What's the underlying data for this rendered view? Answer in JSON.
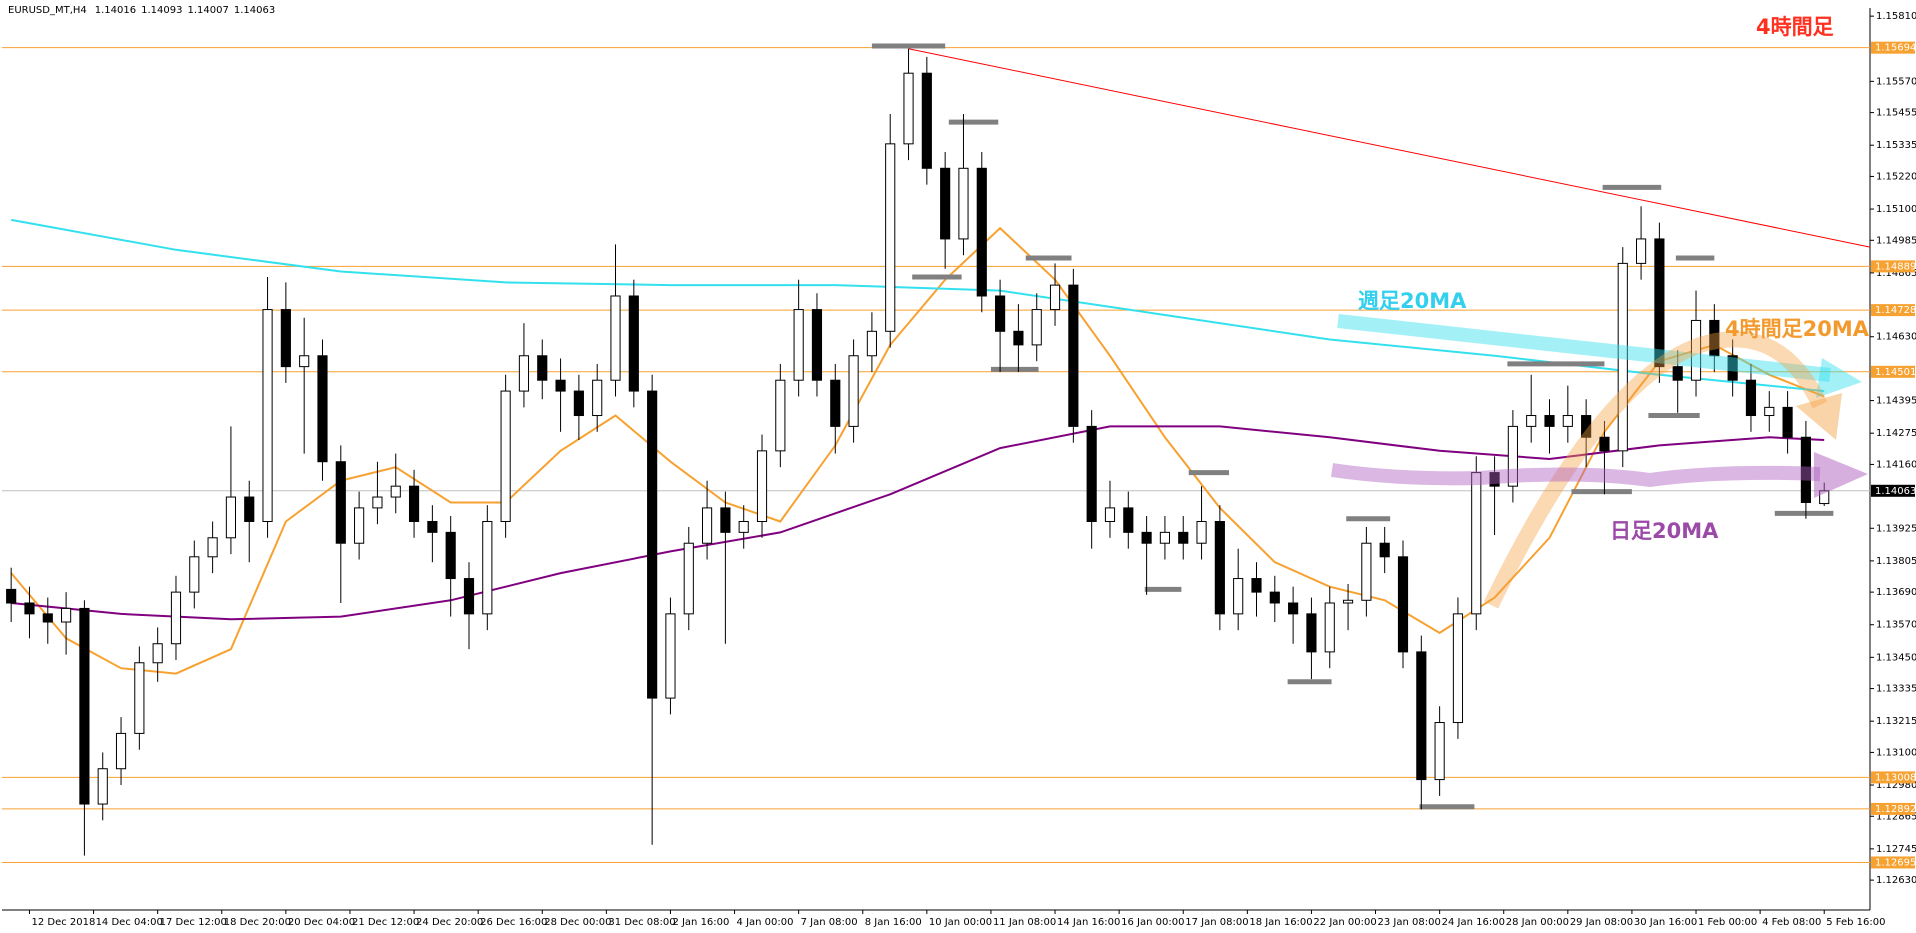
{
  "chart_data": {
    "type": "candlestick",
    "symbol": "EURUSD_MT,H4",
    "annotation": "4時間足",
    "up_color": "#ffffff",
    "down_color": "#000000",
    "xlim": [
      -0.5,
      101.5
    ],
    "ylim": [
      1.1252,
      1.1584
    ],
    "xticks": [
      {
        "value": 1,
        "label": "12 Dec 2018"
      },
      {
        "value": 4.5,
        "label": "14 Dec 04:00"
      },
      {
        "value": 8,
        "label": "17 Dec 12:00"
      },
      {
        "value": 11.5,
        "label": "18 Dec 20:00"
      },
      {
        "value": 15,
        "label": "20 Dec 04:00"
      },
      {
        "value": 18.5,
        "label": "21 Dec 12:00"
      },
      {
        "value": 22,
        "label": "24 Dec 20:00"
      },
      {
        "value": 25.5,
        "label": "26 Dec 16:00"
      },
      {
        "value": 29,
        "label": "28 Dec 00:00"
      },
      {
        "value": 32.5,
        "label": "31 Dec 08:00"
      },
      {
        "value": 36,
        "label": "2 Jan 16:00"
      },
      {
        "value": 39.5,
        "label": "4 Jan 00:00"
      },
      {
        "value": 43,
        "label": "7 Jan 08:00"
      },
      {
        "value": 46.5,
        "label": "8 Jan 16:00"
      },
      {
        "value": 50,
        "label": "10 Jan 00:00"
      },
      {
        "value": 53.5,
        "label": "11 Jan 08:00"
      },
      {
        "value": 57,
        "label": "14 Jan 16:00"
      },
      {
        "value": 60.5,
        "label": "16 Jan 00:00"
      },
      {
        "value": 64,
        "label": "17 Jan 08:00"
      },
      {
        "value": 67.5,
        "label": "18 Jan 16:00"
      },
      {
        "value": 71,
        "label": "22 Jan 00:00"
      },
      {
        "value": 74.5,
        "label": "23 Jan 08:00"
      },
      {
        "value": 78,
        "label": "24 Jan 16:00"
      },
      {
        "value": 81.5,
        "label": "28 Jan 00:00"
      },
      {
        "value": 85,
        "label": "29 Jan 08:00"
      },
      {
        "value": 88.5,
        "label": "30 Jan 16:00"
      },
      {
        "value": 92,
        "label": "1 Feb 00:00"
      },
      {
        "value": 95.5,
        "label": "4 Feb 08:00"
      },
      {
        "value": 99,
        "label": "5 Feb 16:00"
      }
    ],
    "yticks": [
      {
        "value": 1.1581,
        "label": "1.15810"
      },
      {
        "value": 1.1557,
        "label": "1.15570"
      },
      1.15455,
      1.15335,
      {
        "value": 1.1522,
        "label": "1.15220"
      },
      {
        "value": 1.151,
        "label": "1.15100"
      },
      1.14985,
      1.14865,
      {
        "value": 1.1463,
        "label": "1.14630"
      },
      1.14395,
      1.14275,
      {
        "value": 1.1416,
        "label": "1.14160"
      },
      1.13925,
      1.13805,
      {
        "value": 1.1369,
        "label": "1.13690"
      },
      {
        "value": 1.1357,
        "label": "1.13570"
      },
      {
        "value": 1.1345,
        "label": "1.13450"
      },
      1.13335,
      1.13215,
      {
        "value": 1.131,
        "label": "1.13100"
      },
      {
        "value": 1.1298,
        "label": "1.12980"
      },
      1.12865,
      1.12745,
      {
        "value": 1.1263,
        "label": "1.12630"
      }
    ],
    "levels": [
      1.15694,
      1.14889,
      1.14728,
      1.14501,
      1.13008,
      1.12892,
      1.12695
    ],
    "level_color": "#f7a130",
    "current_color": "#c0c0c0",
    "trendline": {
      "x": [
        49,
        101.5
      ],
      "values": [
        1.1569,
        1.1496
      ],
      "color": "#ff0000"
    },
    "marker_color": "#808080",
    "markers": [
      [
        47,
        51,
        1.157
      ],
      [
        51.2,
        53.9,
        1.1542
      ],
      [
        49.2,
        51.9,
        1.1485
      ],
      [
        55.4,
        57.9,
        1.1492
      ],
      [
        53.5,
        56.1,
        1.1451
      ],
      [
        64.3,
        66.5,
        1.1413
      ],
      [
        61.9,
        63.9,
        1.137
      ],
      [
        69.7,
        72.1,
        1.1336
      ],
      [
        72.9,
        75.3,
        1.1396
      ],
      [
        76.9,
        79.9,
        1.129
      ],
      [
        81.7,
        87,
        1.1453
      ],
      [
        85.2,
        88.5,
        1.1406
      ],
      [
        86.9,
        90.1,
        1.1518
      ],
      [
        89.4,
        92.2,
        1.1434
      ],
      [
        90.9,
        93,
        1.1492
      ],
      [
        96.3,
        99.5,
        1.1398
      ]
    ],
    "series": [
      {
        "name": "4時間足20MA",
        "color": "#f7a130",
        "x": [
          0,
          3,
          6,
          9,
          12,
          15,
          18,
          21,
          24,
          27,
          30,
          33,
          36,
          39,
          42,
          45,
          48,
          51,
          54,
          57,
          60,
          63,
          66,
          69,
          72,
          75,
          78,
          81,
          84,
          87,
          90,
          93,
          96,
          99
        ],
        "values": [
          1.1376,
          1.1352,
          1.1341,
          1.1339,
          1.1348,
          1.1395,
          1.141,
          1.1415,
          1.1402,
          1.1402,
          1.1421,
          1.1434,
          1.1417,
          1.1402,
          1.1395,
          1.1423,
          1.146,
          1.1484,
          1.1503,
          1.1484,
          1.1456,
          1.1426,
          1.14,
          1.138,
          1.1371,
          1.1366,
          1.1354,
          1.1367,
          1.1389,
          1.1428,
          1.1454,
          1.146,
          1.1449,
          1.1441
        ]
      },
      {
        "name": "週足20MA",
        "color": "#33e0ee",
        "x": [
          0,
          9,
          18,
          27,
          36,
          45,
          54,
          63,
          72,
          81,
          90,
          99
        ],
        "values": [
          1.1506,
          1.1495,
          1.1487,
          1.1483,
          1.1482,
          1.1482,
          1.148,
          1.1471,
          1.1462,
          1.1456,
          1.1449,
          1.1443
        ]
      },
      {
        "name": "日足20MA",
        "color": "#800080",
        "x": [
          0,
          6,
          12,
          18,
          24,
          30,
          36,
          42,
          48,
          54,
          60,
          66,
          72,
          78,
          84,
          90,
          96,
          99
        ],
        "values": [
          1.1365,
          1.1361,
          1.1359,
          1.136,
          1.1366,
          1.1376,
          1.1384,
          1.1391,
          1.1405,
          1.1422,
          1.143,
          1.143,
          1.1426,
          1.1421,
          1.1418,
          1.1423,
          1.1426,
          1.1425
        ]
      }
    ],
    "ohlc": [
      [
        1.137,
        1.1378,
        1.1358,
        1.1365
      ],
      [
        1.1365,
        1.1371,
        1.1352,
        1.1361
      ],
      [
        1.1361,
        1.1367,
        1.135,
        1.1358
      ],
      [
        1.1358,
        1.1369,
        1.1346,
        1.1363
      ],
      [
        1.1363,
        1.1366,
        1.1272,
        1.1291
      ],
      [
        1.1291,
        1.131,
        1.1285,
        1.1304
      ],
      [
        1.1304,
        1.1323,
        1.1298,
        1.1317
      ],
      [
        1.1317,
        1.1349,
        1.1311,
        1.1343
      ],
      [
        1.1343,
        1.1356,
        1.1336,
        1.135
      ],
      [
        1.135,
        1.1375,
        1.1344,
        1.1369
      ],
      [
        1.1369,
        1.1388,
        1.1363,
        1.1382
      ],
      [
        1.1382,
        1.1395,
        1.1376,
        1.1389
      ],
      [
        1.1389,
        1.143,
        1.1383,
        1.1404
      ],
      [
        1.1404,
        1.141,
        1.138,
        1.1395
      ],
      [
        1.1395,
        1.1485,
        1.1389,
        1.1473
      ],
      [
        1.1473,
        1.1483,
        1.1446,
        1.1452
      ],
      [
        1.1452,
        1.147,
        1.142,
        1.1456
      ],
      [
        1.1456,
        1.1462,
        1.141,
        1.1417
      ],
      [
        1.1417,
        1.1423,
        1.1365,
        1.1387
      ],
      [
        1.1387,
        1.1406,
        1.1381,
        1.14
      ],
      [
        1.14,
        1.1417,
        1.1394,
        1.1404
      ],
      [
        1.1404,
        1.142,
        1.1398,
        1.1408
      ],
      [
        1.1408,
        1.1414,
        1.1389,
        1.1395
      ],
      [
        1.1395,
        1.1401,
        1.138,
        1.1391
      ],
      [
        1.1391,
        1.1397,
        1.136,
        1.1374
      ],
      [
        1.1374,
        1.138,
        1.1348,
        1.1361
      ],
      [
        1.1361,
        1.1401,
        1.1355,
        1.1395
      ],
      [
        1.1395,
        1.1449,
        1.1389,
        1.1443
      ],
      [
        1.1443,
        1.1468,
        1.1437,
        1.1456
      ],
      [
        1.1456,
        1.1462,
        1.144,
        1.1447
      ],
      [
        1.1447,
        1.1455,
        1.1428,
        1.1443
      ],
      [
        1.1443,
        1.1449,
        1.1425,
        1.1434
      ],
      [
        1.1434,
        1.1453,
        1.1428,
        1.1447
      ],
      [
        1.1447,
        1.1497,
        1.1441,
        1.1478
      ],
      [
        1.1478,
        1.1484,
        1.1437,
        1.1443
      ],
      [
        1.1443,
        1.1449,
        1.1276,
        1.133
      ],
      [
        1.133,
        1.1367,
        1.1324,
        1.1361
      ],
      [
        1.1361,
        1.1393,
        1.1355,
        1.1387
      ],
      [
        1.1387,
        1.141,
        1.1381,
        1.14
      ],
      [
        1.14,
        1.1406,
        1.135,
        1.1391
      ],
      [
        1.1391,
        1.1401,
        1.1385,
        1.1395
      ],
      [
        1.1395,
        1.1427,
        1.1389,
        1.1421
      ],
      [
        1.1421,
        1.1453,
        1.1415,
        1.1447
      ],
      [
        1.1447,
        1.1484,
        1.1441,
        1.1473
      ],
      [
        1.1473,
        1.1479,
        1.1441,
        1.1447
      ],
      [
        1.1447,
        1.1453,
        1.142,
        1.143
      ],
      [
        1.143,
        1.1462,
        1.1424,
        1.1456
      ],
      [
        1.1456,
        1.1472,
        1.145,
        1.1465
      ],
      [
        1.1465,
        1.1545,
        1.1459,
        1.1534
      ],
      [
        1.1534,
        1.1569,
        1.1528,
        1.156
      ],
      [
        1.156,
        1.1566,
        1.1519,
        1.1525
      ],
      [
        1.1525,
        1.1531,
        1.1488,
        1.1499
      ],
      [
        1.1499,
        1.1545,
        1.1493,
        1.1525
      ],
      [
        1.1525,
        1.1531,
        1.1472,
        1.1478
      ],
      [
        1.1478,
        1.1484,
        1.145,
        1.1465
      ],
      [
        1.1465,
        1.1475,
        1.145,
        1.146
      ],
      [
        1.146,
        1.1479,
        1.1454,
        1.1473
      ],
      [
        1.1473,
        1.149,
        1.1467,
        1.1482
      ],
      [
        1.1482,
        1.1488,
        1.1424,
        1.143
      ],
      [
        1.143,
        1.1436,
        1.1385,
        1.1395
      ],
      [
        1.1395,
        1.141,
        1.1389,
        1.14
      ],
      [
        1.14,
        1.1406,
        1.1385,
        1.1391
      ],
      [
        1.1391,
        1.1397,
        1.1368,
        1.1387
      ],
      [
        1.1387,
        1.1397,
        1.1381,
        1.1391
      ],
      [
        1.1391,
        1.1397,
        1.1381,
        1.1387
      ],
      [
        1.1387,
        1.1408,
        1.1381,
        1.1395
      ],
      [
        1.1395,
        1.1401,
        1.1355,
        1.1361
      ],
      [
        1.1361,
        1.1385,
        1.1355,
        1.1374
      ],
      [
        1.1374,
        1.138,
        1.136,
        1.1369
      ],
      [
        1.1369,
        1.1375,
        1.1358,
        1.1365
      ],
      [
        1.1365,
        1.1371,
        1.135,
        1.1361
      ],
      [
        1.1361,
        1.1367,
        1.1337,
        1.1347
      ],
      [
        1.1347,
        1.1371,
        1.1341,
        1.1365
      ],
      [
        1.1365,
        1.1372,
        1.1355,
        1.1366
      ],
      [
        1.1366,
        1.1393,
        1.136,
        1.1387
      ],
      [
        1.1387,
        1.1393,
        1.1376,
        1.1382
      ],
      [
        1.1382,
        1.1388,
        1.1341,
        1.1347
      ],
      [
        1.1347,
        1.1353,
        1.1289,
        1.13
      ],
      [
        1.13,
        1.1327,
        1.1294,
        1.1321
      ],
      [
        1.1321,
        1.1367,
        1.1315,
        1.1361
      ],
      [
        1.1361,
        1.1419,
        1.1355,
        1.1413
      ],
      [
        1.1413,
        1.1419,
        1.139,
        1.1408
      ],
      [
        1.1408,
        1.1436,
        1.1402,
        1.143
      ],
      [
        1.143,
        1.1449,
        1.1424,
        1.1434
      ],
      [
        1.1434,
        1.144,
        1.142,
        1.143
      ],
      [
        1.143,
        1.1445,
        1.1424,
        1.1434
      ],
      [
        1.1434,
        1.144,
        1.1415,
        1.1426
      ],
      [
        1.1426,
        1.1432,
        1.1405,
        1.1421
      ],
      [
        1.1421,
        1.1496,
        1.1415,
        1.149
      ],
      [
        1.149,
        1.1511,
        1.1484,
        1.1499
      ],
      [
        1.1499,
        1.1505,
        1.1446,
        1.1452
      ],
      [
        1.1452,
        1.1458,
        1.1435,
        1.1447
      ],
      [
        1.1447,
        1.148,
        1.1441,
        1.1469
      ],
      [
        1.1469,
        1.1475,
        1.145,
        1.1456
      ],
      [
        1.1456,
        1.1462,
        1.1441,
        1.1447
      ],
      [
        1.1447,
        1.1453,
        1.1428,
        1.1434
      ],
      [
        1.1434,
        1.1443,
        1.1428,
        1.1437
      ],
      [
        1.1437,
        1.1443,
        1.142,
        1.1426
      ],
      [
        1.1426,
        1.1432,
        1.1396,
        1.1402
      ],
      [
        1.14016,
        1.14093,
        1.14007,
        1.14063
      ]
    ]
  }
}
